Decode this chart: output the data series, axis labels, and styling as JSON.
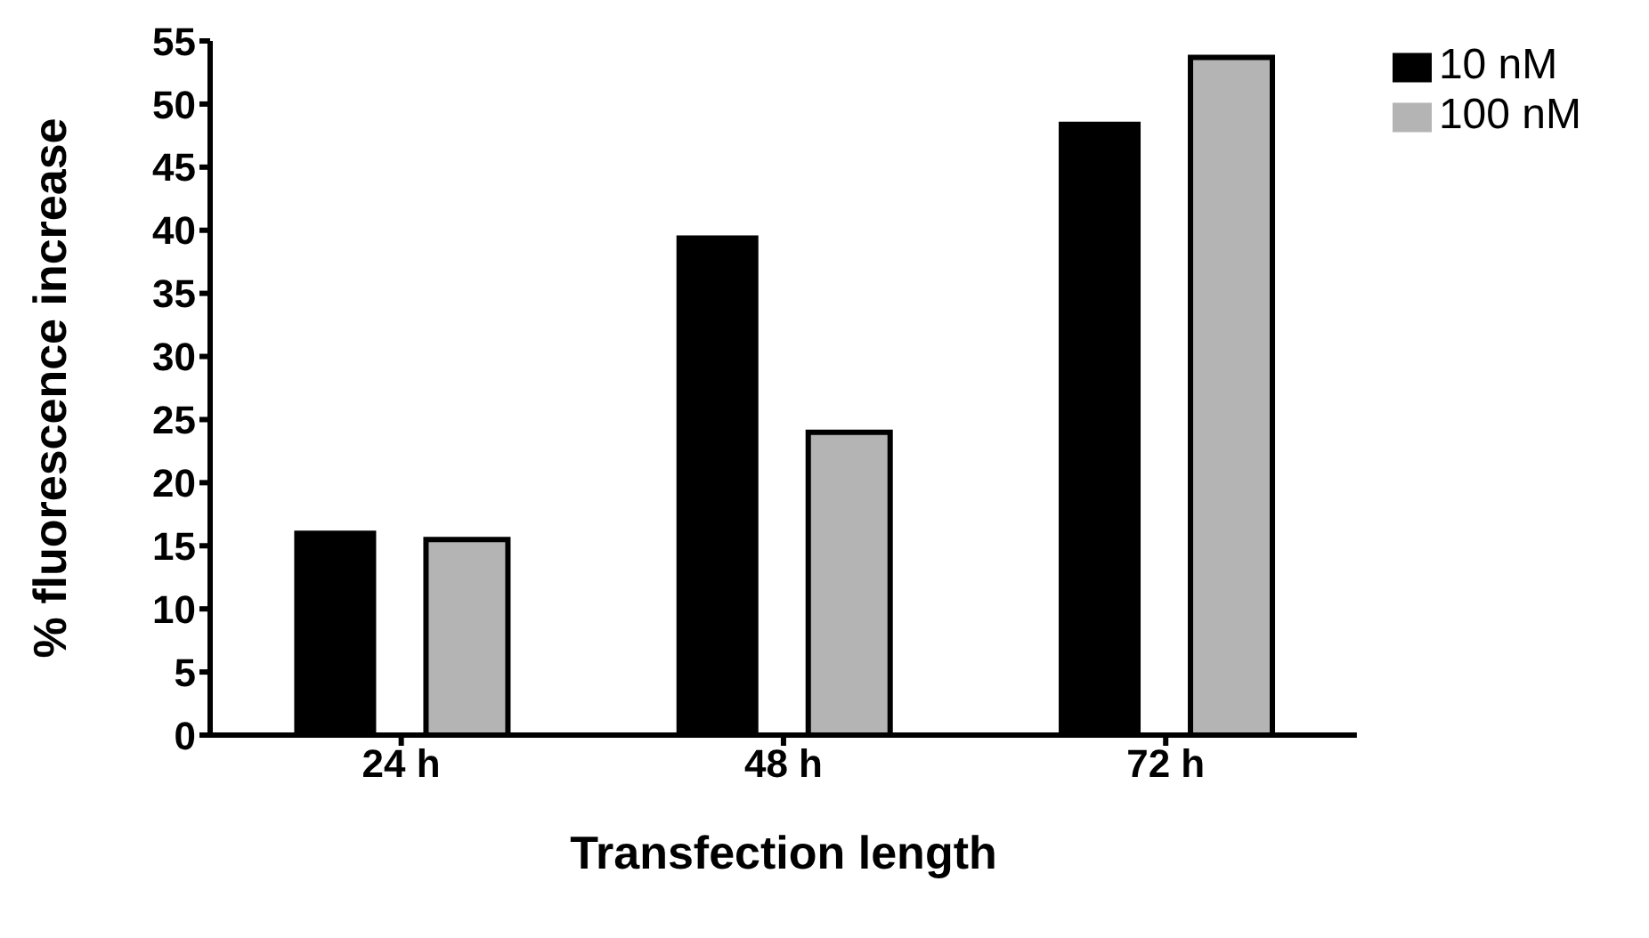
{
  "chart_data": {
    "type": "bar",
    "xlabel": "Transfection length",
    "ylabel": "% fluorescence increase",
    "categories": [
      "24 h",
      "48 h",
      "72 h"
    ],
    "series": [
      {
        "name": "10 nM",
        "color": "#000000",
        "values": [
          16.2,
          39.6,
          48.6
        ]
      },
      {
        "name": "100 nM",
        "color": "#b4b4b4",
        "values": [
          15.5,
          24.0,
          53.7
        ]
      }
    ],
    "ylim": [
      0,
      55
    ],
    "yticks": [
      0,
      5,
      10,
      15,
      20,
      25,
      30,
      35,
      40,
      45,
      50,
      55
    ],
    "grid": false,
    "legend": "top right"
  }
}
